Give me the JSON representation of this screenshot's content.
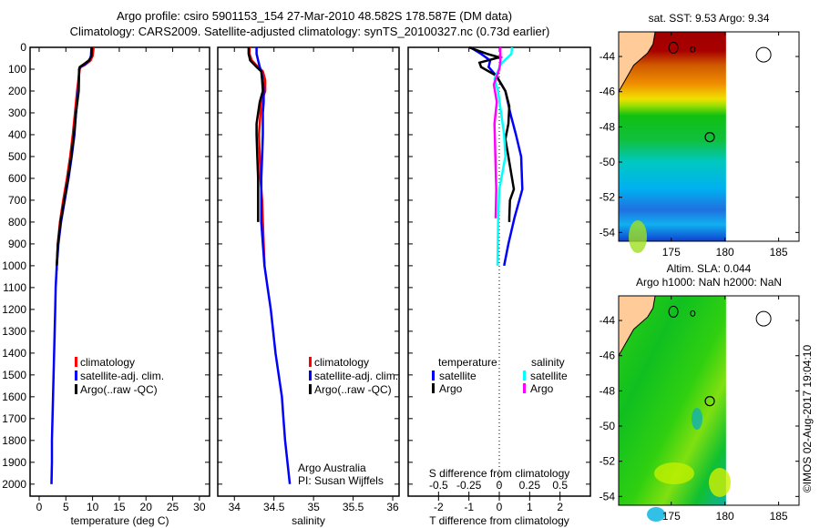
{
  "title": {
    "line1": "Argo profile: csiro 5901153_154 27-Mar-2010 48.582S 178.587E (DM data)",
    "line2": "Climatology: CARS2009. Satellite-adjusted climatology: synTS_20100327.nc (0.73d earlier)"
  },
  "credits": {
    "line1": "Argo Australia",
    "line2": "PI: Susan Wijffels"
  },
  "watermark": "©IMOS 02-Aug-2017 19:04:10",
  "colors": {
    "climatology": "#ff0000",
    "satellite": "#0000ff",
    "argo": "#000000",
    "sal_satellite": "#00ffff",
    "sal_argo": "#ff00ff"
  },
  "chart_data": [
    {
      "type": "line",
      "id": "temperature",
      "xlabel": "temperature (deg C)",
      "ylabel": "",
      "xlim": [
        -1.7,
        31.9
      ],
      "ylim": [
        2055,
        0
      ],
      "xticks": [
        "0",
        "5",
        "10",
        "15",
        "20",
        "25",
        "30"
      ],
      "yticks": [
        "0",
        "100",
        "200",
        "300",
        "400",
        "500",
        "600",
        "700",
        "800",
        "900",
        "1000",
        "1100",
        "1200",
        "1300",
        "1400",
        "1500",
        "1600",
        "1700",
        "1800",
        "1900",
        "2000"
      ],
      "legend": [
        "climatology",
        "satellite-adj. clim.",
        "Argo(..raw -QC)"
      ],
      "series": [
        {
          "name": "climatology",
          "color": "#ff0000",
          "depth": [
            0,
            40,
            60,
            80,
            90,
            100,
            200,
            300,
            400,
            500,
            600,
            700,
            800,
            900,
            1000,
            1020
          ],
          "values": [
            10.2,
            10.0,
            9.6,
            8.6,
            7.8,
            7.6,
            7.1,
            6.7,
            6.3,
            5.8,
            5.2,
            4.5,
            3.9,
            3.5,
            3.3,
            3.3
          ]
        },
        {
          "name": "satellite-adj. clim.",
          "color": "#0000ff",
          "depth": [
            0,
            40,
            60,
            80,
            90,
            100,
            200,
            300,
            400,
            500,
            600,
            700,
            800,
            900,
            1000,
            1100,
            1200,
            1300,
            1400,
            1500,
            1600,
            1700,
            1800,
            1900,
            2000
          ],
          "values": [
            9.8,
            9.7,
            9.4,
            8.4,
            7.7,
            7.5,
            7.3,
            6.9,
            6.6,
            6.1,
            5.5,
            4.8,
            4.1,
            3.6,
            3.3,
            3.1,
            3.0,
            2.9,
            2.8,
            2.7,
            2.6,
            2.5,
            2.4,
            2.4,
            2.3
          ]
        },
        {
          "name": "Argo(..raw -QC)",
          "color": "#000000",
          "depth": [
            0,
            40,
            60,
            80,
            90,
            100,
            200,
            300,
            400,
            500,
            600,
            700,
            800,
            900,
            1000
          ],
          "values": [
            9.9,
            9.8,
            9.3,
            8.2,
            7.6,
            7.5,
            7.4,
            6.9,
            6.5,
            6.0,
            5.4,
            4.7,
            4.0,
            3.5,
            3.3
          ]
        }
      ]
    },
    {
      "type": "line",
      "id": "salinity",
      "xlabel": "salinity",
      "xlim": [
        33.79,
        36.08
      ],
      "ylim": [
        2055,
        0
      ],
      "xticks": [
        "34",
        "34.5",
        "35",
        "35.5",
        "36"
      ],
      "legend": [
        "climatology",
        "satellite-adj. clim.",
        "Argo(..raw -QC)"
      ],
      "series": [
        {
          "name": "climatology",
          "color": "#ff0000",
          "depth": [
            0,
            30,
            60,
            90,
            110,
            150,
            200,
            250,
            300,
            400,
            500,
            600,
            700,
            800,
            900,
            1000
          ],
          "values": [
            34.19,
            34.19,
            34.22,
            34.3,
            34.36,
            34.39,
            34.39,
            34.34,
            34.33,
            34.31,
            34.32,
            34.33,
            34.35,
            34.36,
            34.37,
            34.38
          ]
        },
        {
          "name": "satellite-adj. clim.",
          "color": "#0000ff",
          "depth": [
            0,
            30,
            60,
            90,
            110,
            150,
            200,
            250,
            300,
            400,
            500,
            600,
            700,
            800,
            900,
            1000,
            1100,
            1200,
            1300,
            1400,
            1500,
            1600,
            1700,
            1800,
            1900,
            2000
          ],
          "values": [
            34.28,
            34.28,
            34.3,
            34.32,
            34.34,
            34.36,
            34.37,
            34.37,
            34.36,
            34.36,
            34.35,
            34.34,
            34.34,
            34.34,
            34.36,
            34.38,
            34.42,
            34.46,
            34.49,
            34.52,
            34.56,
            34.6,
            34.62,
            34.64,
            34.67,
            34.7
          ]
        },
        {
          "name": "Argo(..raw -QC)",
          "color": "#000000",
          "depth": [
            0,
            30,
            60,
            90,
            110,
            150,
            200,
            250,
            300,
            350,
            400,
            500,
            600,
            700,
            800
          ],
          "values": [
            34.18,
            34.18,
            34.2,
            34.28,
            34.34,
            34.35,
            34.36,
            34.32,
            34.3,
            34.28,
            34.28,
            34.29,
            34.3,
            34.3,
            34.3
          ]
        }
      ]
    },
    {
      "type": "line",
      "id": "difference",
      "xlabel": "T difference from climatology",
      "x2label": "S difference from climatology",
      "xlim": [
        -3,
        3
      ],
      "x2lim": [
        -0.75,
        0.75
      ],
      "ylim": [
        2055,
        0
      ],
      "xticks": [
        "-2",
        "-1",
        "0",
        "1",
        "2"
      ],
      "x2ticks": [
        "-0.5",
        "-0.25",
        "0",
        "0.25",
        "0.5"
      ],
      "legend": {
        "temperature_header": "temperature",
        "salinity_header": "salinity",
        "satellite": "satellite",
        "argo": "Argo"
      },
      "series": [
        {
          "name": "T satellite",
          "color": "#0000ff",
          "axis": "T",
          "depth": [
            0,
            30,
            60,
            90,
            130,
            200,
            300,
            400,
            500,
            650,
            780,
            900,
            1000
          ],
          "values": [
            -0.95,
            -0.6,
            -0.3,
            -0.35,
            -0.1,
            0.2,
            0.36,
            0.55,
            0.72,
            0.76,
            0.5,
            0.3,
            0.16
          ]
        },
        {
          "name": "T Argo",
          "color": "#000000",
          "axis": "T",
          "depth": [
            0,
            30,
            46,
            70,
            90,
            130,
            200,
            270,
            350,
            420,
            500,
            650,
            700,
            780,
            800
          ],
          "values": [
            -1.0,
            -0.4,
            0.0,
            -0.65,
            -0.6,
            -0.1,
            0.2,
            0.33,
            0.3,
            0.2,
            0.3,
            0.48,
            0.35,
            0.33,
            0.33
          ]
        },
        {
          "name": "S satellite",
          "color": "#00ffff",
          "axis": "S",
          "depth": [
            0,
            30,
            75,
            145,
            200,
            300,
            400,
            500,
            650,
            800,
            1000
          ],
          "values": [
            0.105,
            0.1,
            0.015,
            -0.04,
            -0.01,
            0.015,
            0.04,
            0.05,
            0.0,
            -0.01,
            -0.015
          ]
        },
        {
          "name": "S Argo",
          "color": "#ff00ff",
          "axis": "S",
          "depth": [
            0,
            60,
            100,
            170,
            250,
            350,
            437,
            550,
            650,
            783
          ],
          "values": [
            0.008,
            0.01,
            0.0,
            -0.045,
            -0.02,
            -0.04,
            -0.035,
            -0.03,
            -0.025,
            -0.03
          ]
        }
      ]
    }
  ],
  "maps": [
    {
      "id": "sst",
      "title": [
        "sat. SST: 9.53 Argo: 9.34"
      ],
      "lonticks": [
        "175",
        "180",
        "185"
      ],
      "latticks": [
        "-44",
        "-46",
        "-48",
        "-50",
        "-52",
        "-54"
      ],
      "argo_lat": -48.582,
      "argo_lon": 178.587
    },
    {
      "id": "sla",
      "title": [
        "Altim. SLA: 0.044",
        "Argo h1000: NaN h2000: NaN"
      ],
      "lonticks": [
        "175",
        "180",
        "185"
      ],
      "latticks": [
        "-44",
        "-46",
        "-48",
        "-50",
        "-52",
        "-54"
      ],
      "argo_lat": -48.582,
      "argo_lon": 178.587
    }
  ]
}
